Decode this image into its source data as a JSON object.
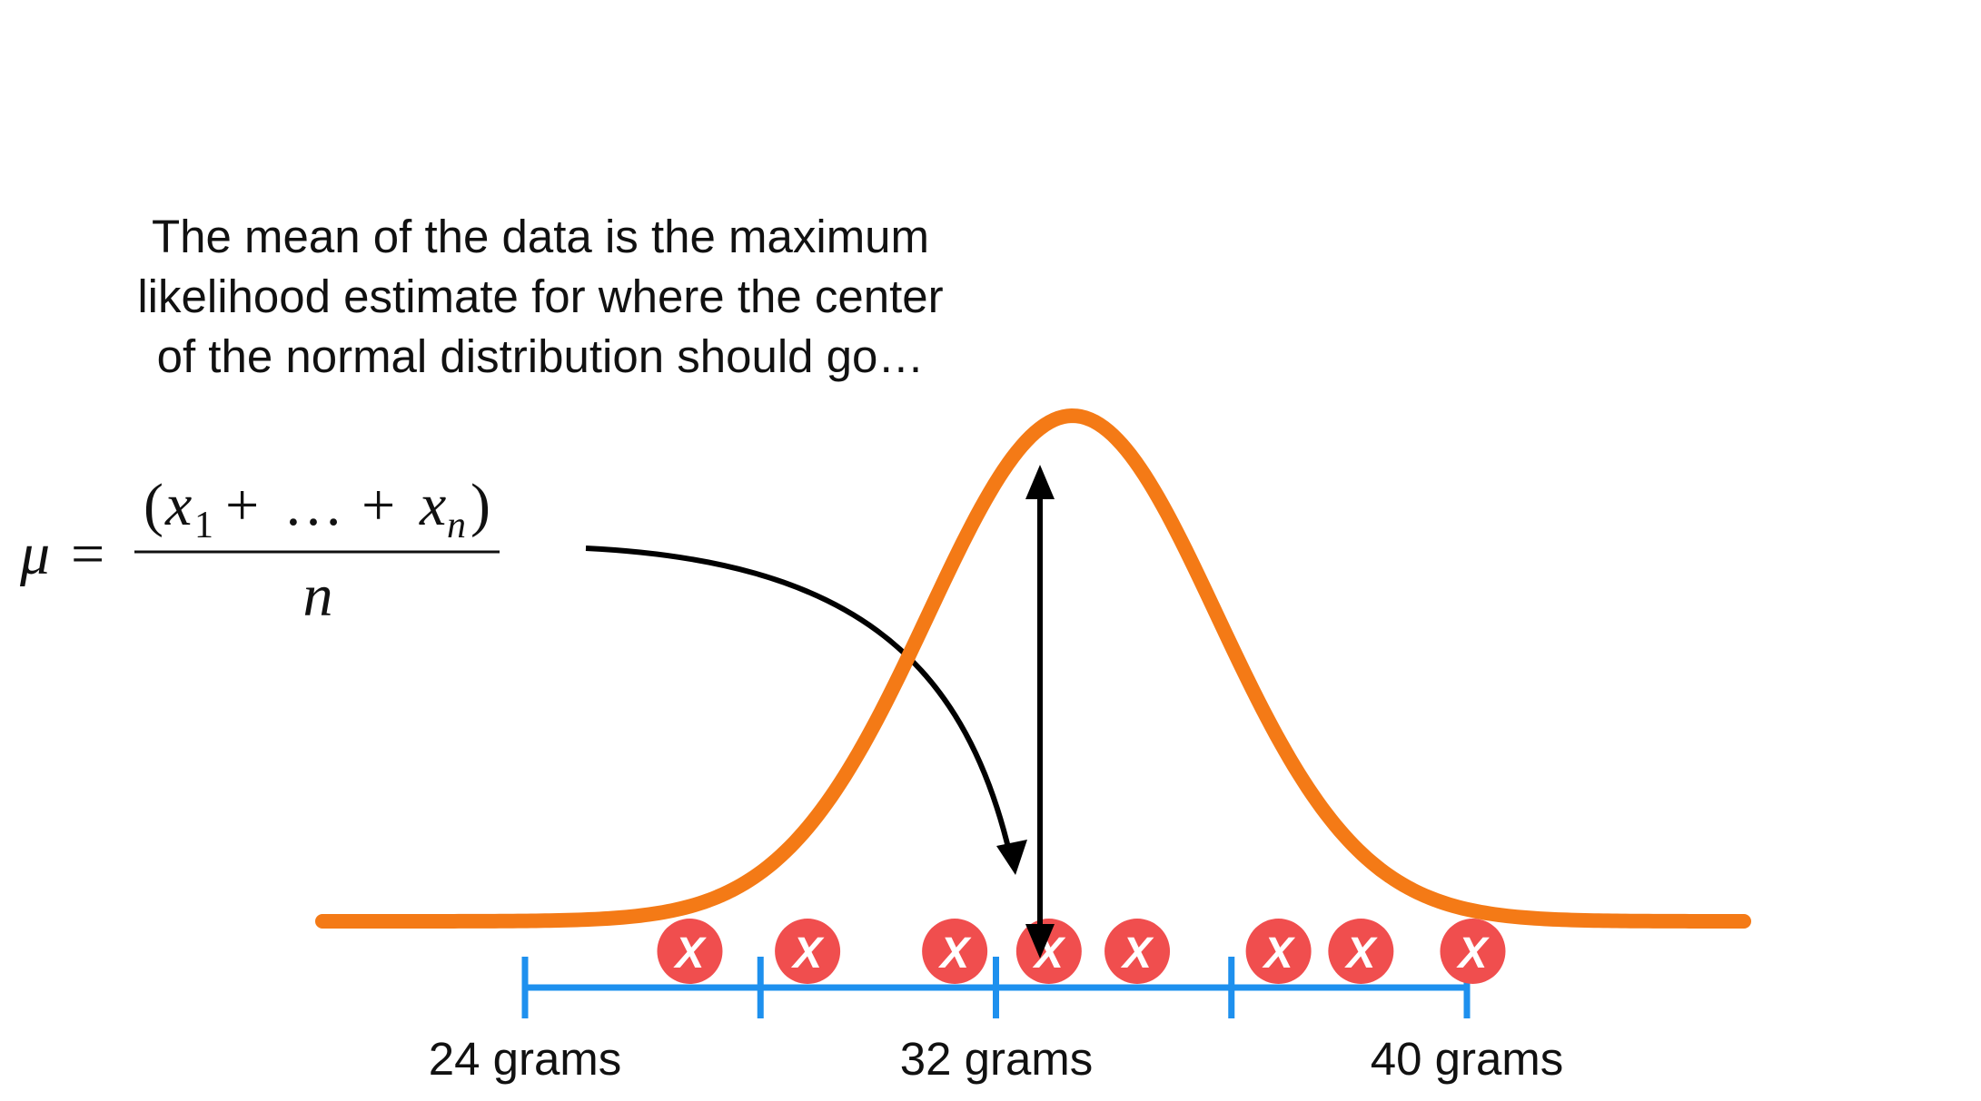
{
  "caption": {
    "lines": [
      "The mean of the data is the maximum",
      "likelihood estimate for where the center",
      "of the normal distribution should go…"
    ]
  },
  "formula": {
    "lhs": "μ",
    "equals": "=",
    "numerator": {
      "open": "(",
      "x1": "x",
      "sub1": "1",
      "plus": "+",
      "dots": "…",
      "xn": "x",
      "subn": "n",
      "close": ")"
    },
    "denominator": "n"
  },
  "axis": {
    "tick_labels": [
      "24 grams",
      "32 grams",
      "40 grams"
    ],
    "color": "#1E90EE"
  },
  "points": {
    "mark": "X",
    "values": [
      26.8,
      28.8,
      31.3,
      32.9,
      34.4,
      36.8,
      38.2,
      40.1
    ],
    "color": "#F04E4E"
  },
  "curve": {
    "color": "#F47A16"
  },
  "arrow": {
    "color": "#000000"
  }
}
